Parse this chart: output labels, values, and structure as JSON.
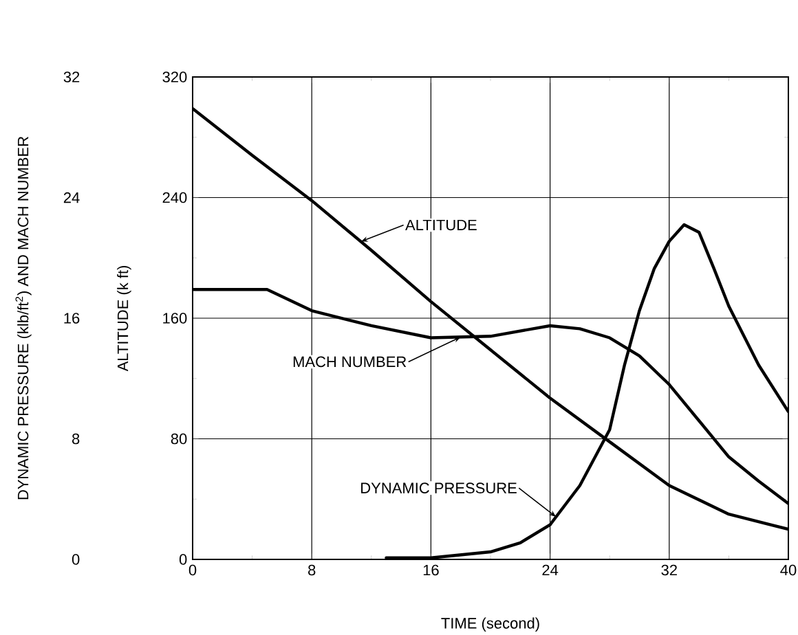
{
  "chart_data": {
    "type": "line",
    "xlabel": "TIME (second)",
    "ylabel": "ALTITUDE (k ft)",
    "y2label": "DYNAMIC PRESSURE (klb/ft$^{2}$) AND MACH NUMBER",
    "xlim": [
      0,
      40
    ],
    "xticks": [
      0,
      8,
      16,
      24,
      32,
      40
    ],
    "ylim": [
      0,
      320
    ],
    "yticks": [
      0,
      80,
      160,
      240,
      320
    ],
    "y2lim": [
      0,
      32
    ],
    "y2ticks": [
      0,
      8,
      16,
      24,
      32
    ],
    "grid": true,
    "marker": "none",
    "line_style": "solid",
    "series": [
      {
        "color": "#000000",
        "axis": "y",
        "x": [
          0,
          4,
          8,
          12,
          16,
          20,
          24,
          28,
          32,
          36,
          40
        ],
        "values": [
          299,
          268,
          238,
          205,
          171,
          139,
          107,
          78,
          49,
          30,
          20
        ]
      },
      {
        "color": "#000000",
        "axis": "y2",
        "x": [
          0,
          5,
          8,
          12,
          16,
          20,
          24,
          26,
          28,
          30,
          32,
          34,
          36,
          38,
          40
        ],
        "values": [
          17.9,
          17.9,
          16.5,
          15.5,
          14.7,
          14.8,
          15.5,
          15.3,
          14.7,
          13.5,
          11.6,
          9.2,
          6.8,
          5.2,
          3.7
        ]
      },
      {
        "color": "#000000",
        "axis": "y2",
        "x": [
          13,
          16,
          20,
          22,
          24,
          26,
          28,
          29,
          30,
          31,
          32,
          33,
          34,
          35,
          36,
          38,
          40
        ],
        "values": [
          0.1,
          0.1,
          0.5,
          1.1,
          2.3,
          4.9,
          8.6,
          12.9,
          16.5,
          19.3,
          21.1,
          22.2,
          21.7,
          19.3,
          16.8,
          12.9,
          9.8
        ]
      }
    ],
    "annotations": [
      {
        "text": "ALTITUDE",
        "x": 11.3,
        "y": 210.8
      },
      {
        "text": "MACH NUMBER",
        "x": 18,
        "y": 147.5
      },
      {
        "text": "DYNAMIC PRESSURE",
        "x": 24.4,
        "y": 28.2
      }
    ]
  }
}
